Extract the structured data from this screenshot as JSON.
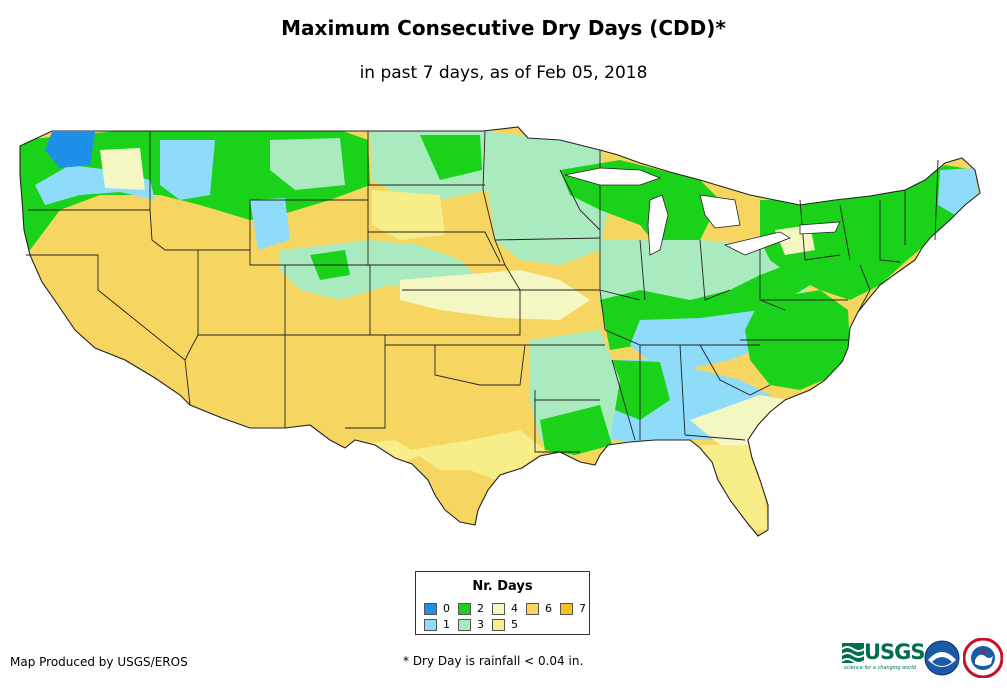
{
  "title": "Maximum Consecutive Dry Days (CDD)*",
  "subtitle": "in past 7 days, as of Feb 05, 2018",
  "legend": {
    "title": "Nr. Days",
    "items": [
      {
        "label": "0",
        "color": "#1e90e8"
      },
      {
        "label": "1",
        "color": "#8fdcfa"
      },
      {
        "label": "2",
        "color": "#19d219"
      },
      {
        "label": "3",
        "color": "#a9ebbf"
      },
      {
        "label": "4",
        "color": "#f5f7c2"
      },
      {
        "label": "5",
        "color": "#f7ee8a"
      },
      {
        "label": "6",
        "color": "#f6d561"
      },
      {
        "label": "7",
        "color": "#f4c21a"
      }
    ]
  },
  "credit": "Map Produced by USGS/EROS",
  "footnote": "* Dry Day is rainfall < 0.04 in.",
  "logos": {
    "usgs": "USGS",
    "usgs_tagline": "science for a changing world"
  }
}
